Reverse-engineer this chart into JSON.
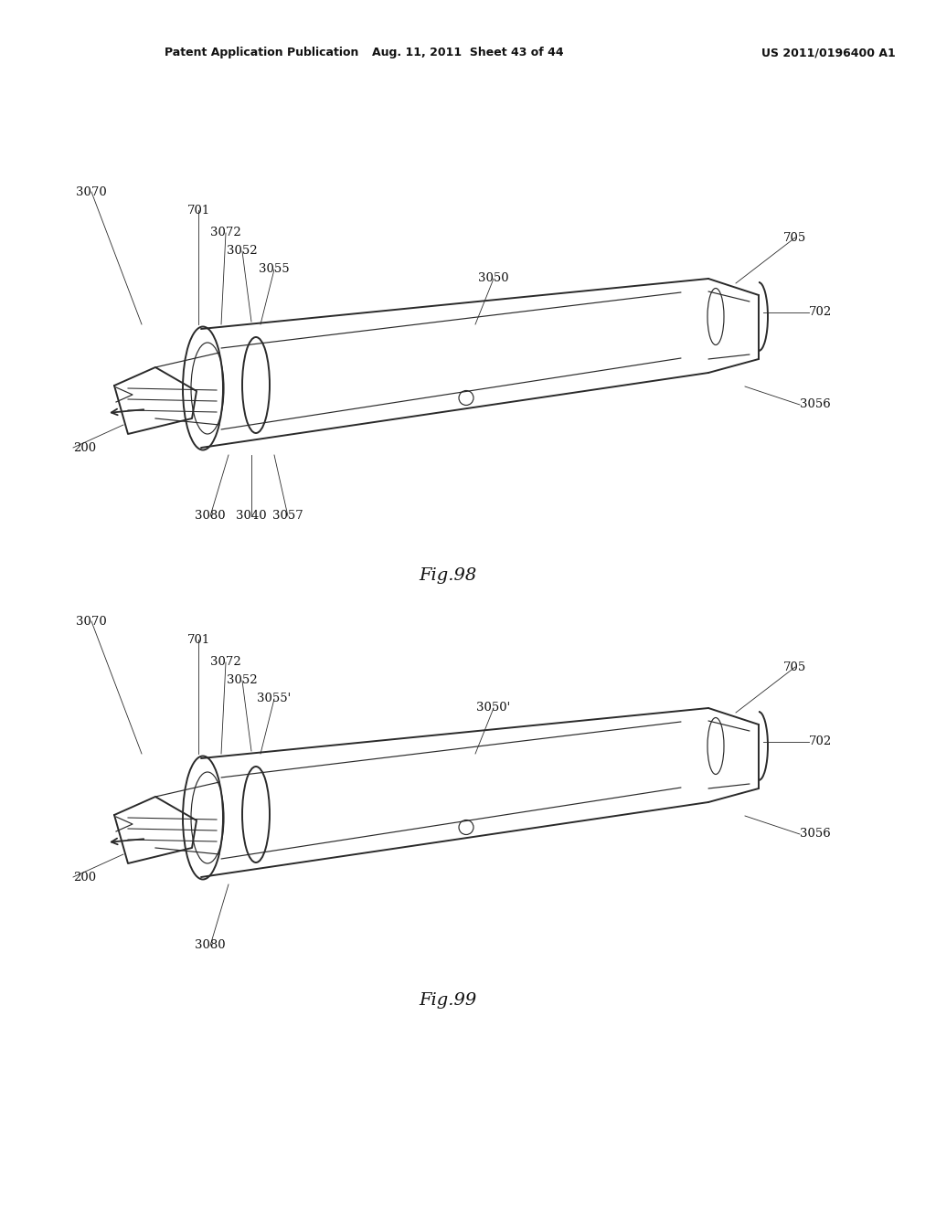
{
  "bg_color": "#ffffff",
  "header_left": "Patent Application Publication",
  "header_mid": "Aug. 11, 2011  Sheet 43 of 44",
  "header_right": "US 2011/0196400 A1",
  "fig98_caption": "Fig.98",
  "fig99_caption": "Fig.99",
  "line_color": "#2a2a2a",
  "lw_main": 1.4,
  "lw_thin": 0.85,
  "lw_label": 0.6,
  "label_fontsize": 9.5,
  "caption_fontsize": 14,
  "header_fontsize": 9
}
